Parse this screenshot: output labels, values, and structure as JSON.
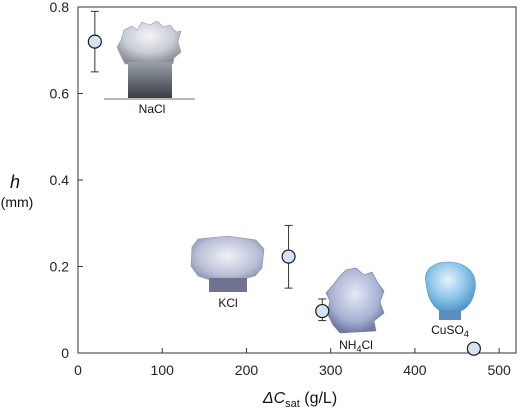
{
  "chart_data": {
    "type": "scatter",
    "xlabel": {
      "prefix": "ΔC",
      "subscript": "sat",
      "suffix": " (g/L)"
    },
    "ylabel": {
      "symbol": "h",
      "unit": "(mm)"
    },
    "xlim": [
      0,
      520
    ],
    "ylim": [
      0,
      0.8
    ],
    "xticks": [
      0,
      100,
      200,
      300,
      400,
      500
    ],
    "yticks": [
      0,
      0.2,
      0.4,
      0.6,
      0.8
    ],
    "ytick_labels": [
      "0",
      "0.2",
      "0.4",
      "0.6",
      "0.8"
    ],
    "grid": false,
    "marker_color": "#d4e4f5",
    "marker_edge": "#1a1a1a",
    "points": [
      {
        "x": 20,
        "y": 0.72,
        "err_low": 0.65,
        "err_high": 0.79
      },
      {
        "x": 250,
        "y": 0.223,
        "err_low": 0.15,
        "err_high": 0.295
      },
      {
        "x": 290,
        "y": 0.097,
        "err_low": 0.075,
        "err_high": 0.125
      },
      {
        "x": 470,
        "y": 0.01
      }
    ],
    "insets": [
      {
        "label": "NaCl",
        "color": "#c8ccd4"
      },
      {
        "label": "KCl",
        "color": "#b9bfd6"
      },
      {
        "label_main": "NH",
        "label_sub": "4",
        "label_tail": "Cl",
        "color": "#a7b1d2"
      },
      {
        "label_main": "CuSO",
        "label_sub": "4",
        "label_tail": "",
        "color": "#8ec5e8"
      }
    ]
  }
}
